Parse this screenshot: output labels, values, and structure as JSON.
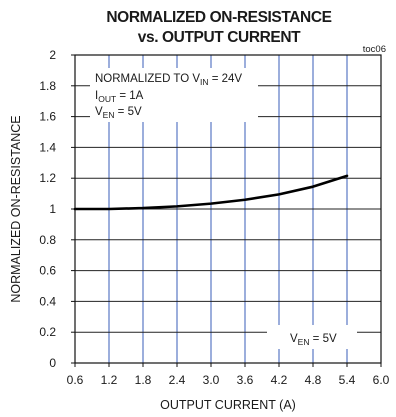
{
  "chart_data": {
    "type": "line",
    "title_line1": "NORMALIZED ON-RESISTANCE",
    "title_line2": "vs. OUTPUT CURRENT",
    "reference": "toc06",
    "xlabel": "OUTPUT CURRENT (A)",
    "ylabel": "NORMALIZED ON-RESISTANCE",
    "xlim": [
      0.6,
      6.0
    ],
    "ylim": [
      0,
      2
    ],
    "x_ticks": [
      "0.6",
      "1.2",
      "1.8",
      "2.4",
      "3.0",
      "3.6",
      "4.2",
      "4.8",
      "5.4",
      "6.0"
    ],
    "y_ticks": [
      "0",
      "0.2",
      "0.4",
      "0.6",
      "0.8",
      "1",
      "1.2",
      "1.4",
      "1.6",
      "1.8",
      "2"
    ],
    "grid": true,
    "annotation": {
      "line1": "NORMALIZED TO V",
      "line1_sub": "IN",
      "line1_tail": " = 24V",
      "line2": "I",
      "line2_sub": "OUT",
      "line2_tail": " = 1A",
      "line3": "V",
      "line3_sub": "EN",
      "line3_tail": " = 5V"
    },
    "curve_label": {
      "main": "V",
      "sub": "EN",
      "tail": " = 5V"
    },
    "series": [
      {
        "color": "#000000",
        "x": [
          0.6,
          1.2,
          1.8,
          2.4,
          3.0,
          3.6,
          4.2,
          4.8,
          5.4
        ],
        "y": [
          1.0,
          1.0,
          1.006,
          1.017,
          1.035,
          1.06,
          1.095,
          1.145,
          1.215
        ]
      }
    ]
  }
}
